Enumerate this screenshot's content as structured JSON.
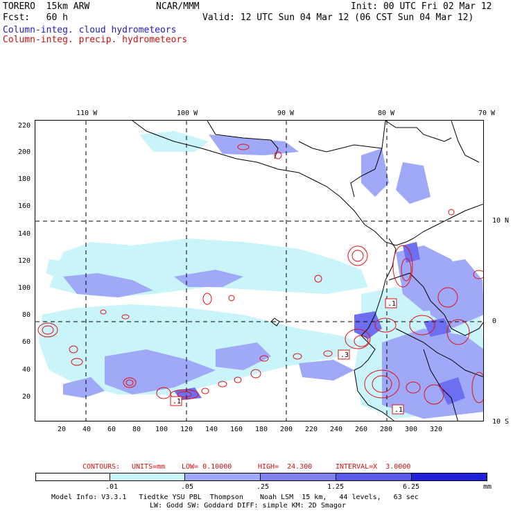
{
  "header": {
    "line1_left": "TORERO  15km ARW",
    "line1_mid": "NCAR/MMM",
    "line1_right": "Init: 00 UTC Fri 02 Mar 12",
    "line2_left": "Fcst:   60 h",
    "line2_right": "Valid: 12 UTC Sun 04 Mar 12 (06 CST Sun 04 Mar 12)",
    "field1": "Column-integ. cloud hydrometeors",
    "field2": "Column-integ. precip. hydrometeors",
    "field1_color": "#2020c0",
    "field2_color": "#d01010"
  },
  "axes": {
    "top_lon_labels": [
      "110 W",
      "100 W",
      "90 W",
      "80 W",
      "70 W"
    ],
    "right_lat_labels": [
      "10 N",
      "0",
      "10 S"
    ],
    "left_ticks": [
      "220",
      "200",
      "180",
      "160",
      "140",
      "120",
      "100",
      "80",
      "60",
      "40",
      "20"
    ],
    "bottom_ticks": [
      "20",
      "40",
      "60",
      "80",
      "100",
      "120",
      "140",
      "160",
      "180",
      "200",
      "220",
      "240",
      "260",
      "280",
      "300",
      "320"
    ]
  },
  "map": {
    "labels": [
      ".1",
      ".3",
      ".1",
      ".1"
    ],
    "ocean_color": "#ffffff",
    "cloud_color_light": "#c8f4fa",
    "cloud_color_mid": "#a0a8f8",
    "cloud_color_dark": "#6e6ef0",
    "precip_color": "#e01010"
  },
  "contours_info": {
    "contours_label": "CONTOURS:",
    "units": "UNITS=mm",
    "low": "LOW= 0.10000",
    "high": "HIGH=  24.300",
    "interval": "INTERVAL=X  3.0000"
  },
  "colorbar": {
    "boundaries": [
      ".01",
      ".05",
      ".25",
      "1.25",
      "6.25"
    ],
    "units": "mm",
    "colors": [
      "#ffffff",
      "#c8f4fa",
      "#a0a8f8",
      "#8080f0",
      "#5a5ae8",
      "#2020e0"
    ]
  },
  "footer": {
    "line1": "Model Info: V3.3.1   Tiedtke YSU PBL  Thompson    Noah LSM  15 km,   44 levels,   63 sec",
    "line2": "LW: Godd SW: Goddard DIFF: simple KM: 2D Smagor"
  }
}
